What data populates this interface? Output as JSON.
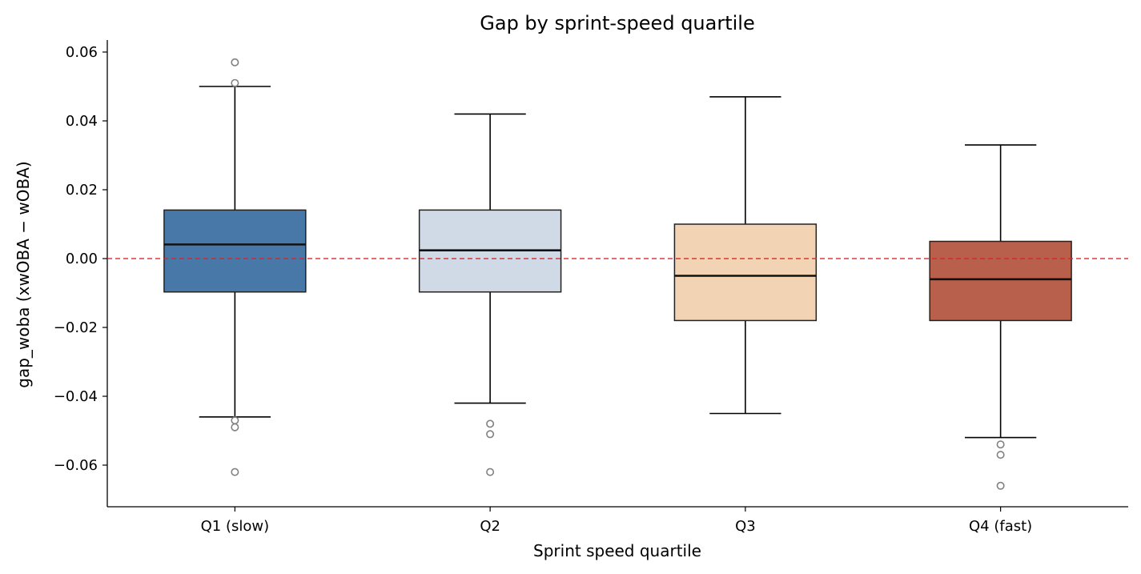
{
  "chart_data": {
    "type": "box",
    "title": "Gap by sprint-speed quartile",
    "xlabel": "Sprint speed quartile",
    "ylabel": "gap_woba (xwOBA − wOBA)",
    "ylim": [
      -0.072,
      0.063
    ],
    "yticks": [
      -0.06,
      -0.04,
      -0.02,
      0.0,
      0.02,
      0.04,
      0.06
    ],
    "ytick_labels": [
      "−0.06",
      "−0.04",
      "−0.02",
      "0.00",
      "0.02",
      "0.04",
      "0.06"
    ],
    "grid": false,
    "reference_line": {
      "y": 0.0,
      "color": "#d62728",
      "style": "dashed"
    },
    "categories": [
      "Q1 (slow)",
      "Q2",
      "Q3",
      "Q4 (fast)"
    ],
    "boxes": [
      {
        "category": "Q1 (slow)",
        "whisker_low": -0.046,
        "q1": -0.0097,
        "median": 0.0041,
        "q3": 0.0141,
        "whisker_high": 0.05,
        "outliers": [
          0.057,
          0.051,
          -0.047,
          -0.049,
          -0.062
        ],
        "color": "#4878a8"
      },
      {
        "category": "Q2",
        "whisker_low": -0.042,
        "q1": -0.0097,
        "median": 0.0024,
        "q3": 0.0141,
        "whisker_high": 0.042,
        "outliers": [
          -0.048,
          -0.051,
          -0.062
        ],
        "color": "#d0dae6"
      },
      {
        "category": "Q3",
        "whisker_low": -0.045,
        "q1": -0.018,
        "median": -0.005,
        "q3": 0.01,
        "whisker_high": 0.047,
        "outliers": [],
        "color": "#f2d4b4"
      },
      {
        "category": "Q4 (fast)",
        "whisker_low": -0.052,
        "q1": -0.018,
        "median": -0.006,
        "q3": 0.005,
        "whisker_high": 0.033,
        "outliers": [
          -0.054,
          -0.057,
          -0.066
        ],
        "color": "#b8604c"
      }
    ]
  }
}
